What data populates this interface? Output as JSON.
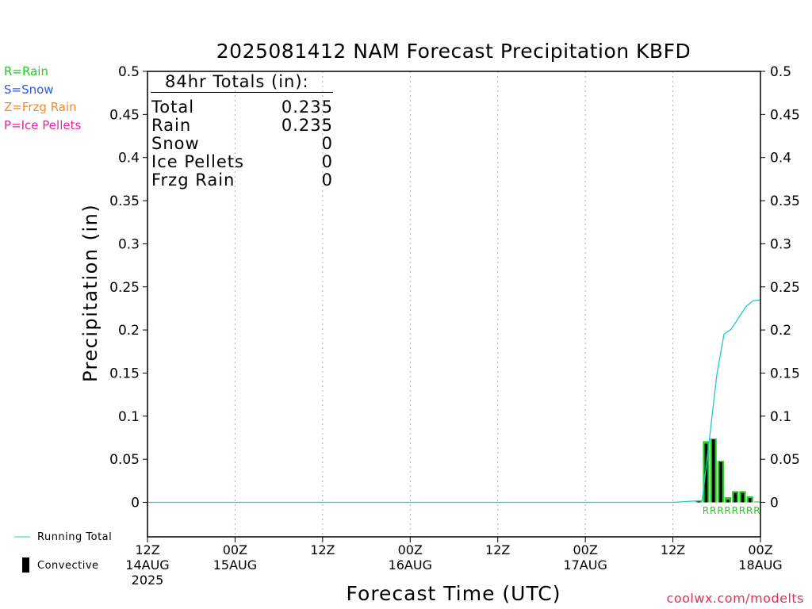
{
  "title": "2025081412 NAM Forecast Precipitation KBFD",
  "legend_ptype": [
    {
      "text": "R=Rain",
      "color": "#22cc22"
    },
    {
      "text": "S=Snow",
      "color": "#3355ee"
    },
    {
      "text": "Z=Frzg Rain",
      "color": "#f08a2a"
    },
    {
      "text": "P=Ice Pellets",
      "color": "#ee2299"
    }
  ],
  "totals": {
    "header": "84hr Totals (in):",
    "rows": [
      {
        "label": "Total",
        "value": "0.235"
      },
      {
        "label": "Rain",
        "value": "0.235"
      },
      {
        "label": "Snow",
        "value": "0"
      },
      {
        "label": "Ice Pellets",
        "value": "0"
      },
      {
        "label": "Frzg Rain",
        "value": "0"
      }
    ]
  },
  "footer_legend": {
    "running_total": "Running Total",
    "convective": "Convective"
  },
  "credit": "coolwx.com/modelts",
  "colors": {
    "rain_bar": "#22cc22",
    "convective_bar": "#000000",
    "running_total": "#20c8c8",
    "grid": "#aaaaaa",
    "ptype_text": "#22cc22"
  },
  "chart_data": {
    "type": "bar",
    "xlabel": "Forecast Time (UTC)",
    "ylabel": "Precipitation (in)",
    "ylim": [
      -0.04,
      0.5
    ],
    "y_ticks": [
      0,
      0.05,
      0.1,
      0.15,
      0.2,
      0.25,
      0.3,
      0.35,
      0.4,
      0.45,
      0.5
    ],
    "y_tick_labels": [
      "0",
      "0.05",
      "0.1",
      "0.15",
      "0.2",
      "0.25",
      "0.3",
      "0.35",
      "0.4",
      "0.45",
      "0.5"
    ],
    "xlim_hours": [
      0,
      84
    ],
    "x_ticks": [
      {
        "hour": 0,
        "lines": [
          "12Z",
          "14AUG",
          "2025"
        ]
      },
      {
        "hour": 12,
        "lines": [
          "00Z",
          "15AUG"
        ]
      },
      {
        "hour": 24,
        "lines": [
          "12Z"
        ]
      },
      {
        "hour": 36,
        "lines": [
          "00Z",
          "16AUG"
        ]
      },
      {
        "hour": 48,
        "lines": [
          "12Z"
        ]
      },
      {
        "hour": 60,
        "lines": [
          "00Z",
          "17AUG"
        ]
      },
      {
        "hour": 72,
        "lines": [
          "12Z"
        ]
      },
      {
        "hour": 84,
        "lines": [
          "00Z",
          "18AUG"
        ]
      }
    ],
    "grid": "vertical dotted",
    "series": [
      {
        "name": "Rain",
        "hours": [
          76,
          77,
          78,
          79,
          80,
          81,
          82,
          83,
          84
        ],
        "values": [
          0.002,
          0.071,
          0.074,
          0.048,
          0.006,
          0.013,
          0.013,
          0.007,
          0.001
        ]
      },
      {
        "name": "Convective",
        "hours": [
          76,
          77,
          78,
          79,
          80,
          81,
          82,
          83,
          84
        ],
        "values": [
          0.001,
          0.068,
          0.073,
          0.047,
          0.003,
          0.011,
          0.011,
          0.005,
          0.0
        ]
      },
      {
        "name": "Running Total",
        "hours": [
          0,
          72,
          76,
          77,
          78,
          79,
          80,
          81,
          82,
          83,
          84
        ],
        "values": [
          0,
          0,
          0.002,
          0.073,
          0.147,
          0.195,
          0.201,
          0.214,
          0.227,
          0.234,
          0.235
        ]
      }
    ],
    "ptype_labels": {
      "hours": [
        76.5,
        77.5,
        78.5,
        79.5,
        80.5,
        81.5,
        82.5,
        83.5
      ],
      "text": [
        "R",
        "R",
        "R",
        "R",
        "R",
        "R",
        "R",
        "R"
      ]
    }
  }
}
